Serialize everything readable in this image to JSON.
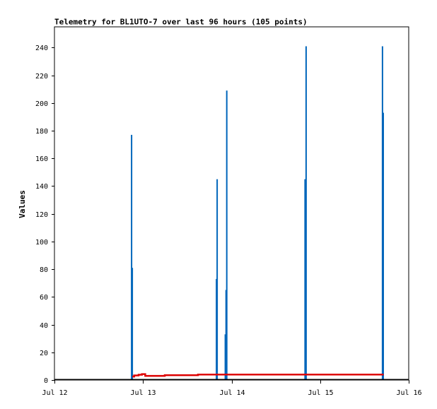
{
  "chart_data": {
    "type": "bar",
    "title": "Telemetry for BL1UTO-7 over last 96 hours (105 points)",
    "ylabel": "Values",
    "xlabel": "",
    "ylim": [
      0,
      255
    ],
    "yticks": [
      0,
      20,
      40,
      60,
      80,
      100,
      120,
      140,
      160,
      180,
      200,
      220,
      240
    ],
    "xlim_hours": [
      0,
      96
    ],
    "xticks": [
      {
        "label": "Jul 12",
        "hour": 0
      },
      {
        "label": "Jul 13",
        "hour": 24
      },
      {
        "label": "Jul 14",
        "hour": 48
      },
      {
        "label": "Jul 15",
        "hour": 72
      },
      {
        "label": "Jul 16",
        "hour": 96
      }
    ],
    "grid": false,
    "legend": "none",
    "series": [
      {
        "kind": "spikes",
        "color": "#0066bb",
        "points": [
          {
            "hour": 20.9,
            "value": 177
          },
          {
            "hour": 21.1,
            "value": 81
          },
          {
            "hour": 43.9,
            "value": 73
          },
          {
            "hour": 44.1,
            "value": 145
          },
          {
            "hour": 46.3,
            "value": 33
          },
          {
            "hour": 46.5,
            "value": 65
          },
          {
            "hour": 46.7,
            "value": 209
          },
          {
            "hour": 67.9,
            "value": 145
          },
          {
            "hour": 68.2,
            "value": 241
          },
          {
            "hour": 88.9,
            "value": 241
          },
          {
            "hour": 89.1,
            "value": 193
          }
        ]
      },
      {
        "kind": "step",
        "color": "#dd0000",
        "points": [
          {
            "hour": 21.1,
            "value": 2.5
          },
          {
            "hour": 21.6,
            "value": 3.3
          },
          {
            "hour": 22.8,
            "value": 3.8
          },
          {
            "hour": 23.7,
            "value": 4.3
          },
          {
            "hour": 24.6,
            "value": 3.0
          },
          {
            "hour": 29.9,
            "value": 3.5
          },
          {
            "hour": 38.9,
            "value": 4.0
          },
          {
            "hour": 89.2,
            "value": 4.0
          }
        ]
      },
      {
        "kind": "baseline",
        "color": "#000000",
        "points": [
          {
            "hour": 0,
            "value": 0
          },
          {
            "hour": 96,
            "value": 0
          }
        ]
      }
    ]
  }
}
